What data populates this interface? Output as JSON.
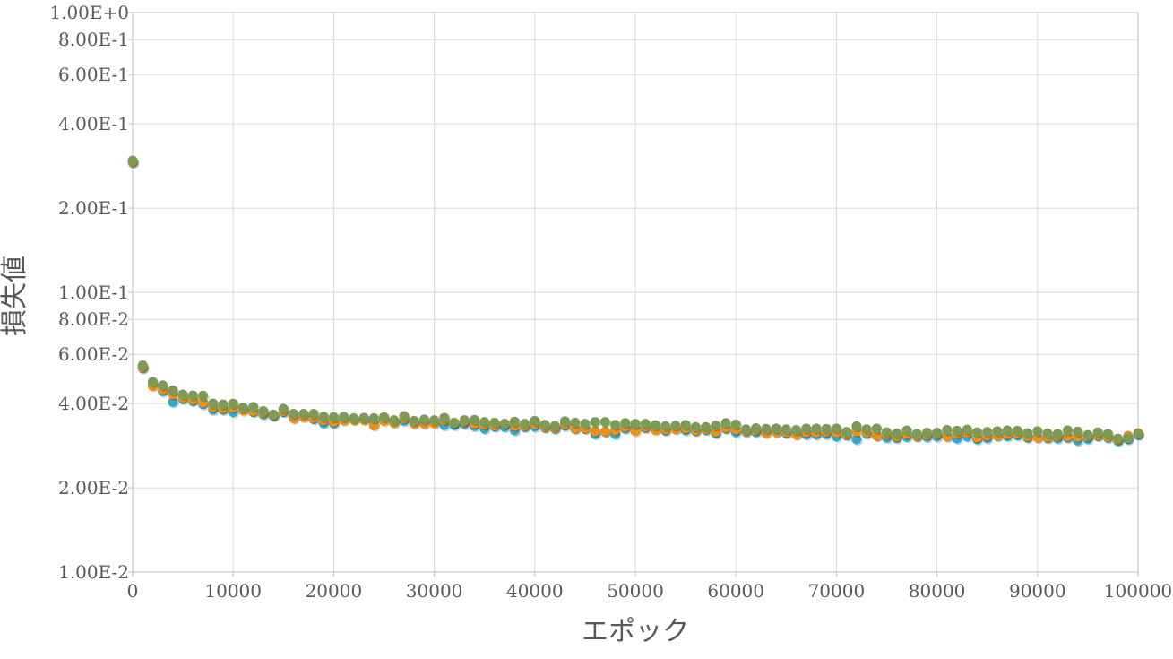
{
  "chart_data": {
    "type": "scatter",
    "title": "",
    "xlabel": "エポック",
    "ylabel": "損失値",
    "xlim": [
      0,
      100000
    ],
    "ylim": [
      0.01,
      1.0
    ],
    "y_scale": "log",
    "grid": true,
    "legend": "none",
    "x_ticks": [
      "0",
      "10000",
      "20000",
      "30000",
      "40000",
      "50000",
      "60000",
      "70000",
      "80000",
      "90000",
      "100000"
    ],
    "y_ticks": [
      {
        "value": 1.0,
        "label": "1.00E+0"
      },
      {
        "value": 0.8,
        "label": "8.00E-1"
      },
      {
        "value": 0.6,
        "label": "6.00E-1"
      },
      {
        "value": 0.4,
        "label": "4.00E-1"
      },
      {
        "value": 0.2,
        "label": "2.00E-1"
      },
      {
        "value": 0.1,
        "label": "1.00E-1"
      },
      {
        "value": 0.08,
        "label": "8.00E-2"
      },
      {
        "value": 0.06,
        "label": "6.00E-2"
      },
      {
        "value": 0.04,
        "label": "4.00E-2"
      },
      {
        "value": 0.02,
        "label": "2.00E-2"
      },
      {
        "value": 0.01,
        "label": "1.00E-2"
      }
    ],
    "x": [
      0,
      1000,
      2000,
      3000,
      4000,
      5000,
      6000,
      7000,
      8000,
      9000,
      10000,
      11000,
      12000,
      13000,
      14000,
      15000,
      16000,
      17000,
      18000,
      19000,
      20000,
      21000,
      22000,
      23000,
      24000,
      25000,
      26000,
      27000,
      28000,
      29000,
      30000,
      31000,
      32000,
      33000,
      34000,
      35000,
      36000,
      37000,
      38000,
      39000,
      40000,
      41000,
      42000,
      43000,
      44000,
      45000,
      46000,
      47000,
      48000,
      49000,
      50000,
      51000,
      52000,
      53000,
      54000,
      55000,
      56000,
      57000,
      58000,
      59000,
      60000,
      61000,
      62000,
      63000,
      64000,
      65000,
      66000,
      67000,
      68000,
      69000,
      70000,
      71000,
      72000,
      73000,
      74000,
      75000,
      76000,
      77000,
      78000,
      79000,
      80000,
      81000,
      82000,
      83000,
      84000,
      85000,
      86000,
      87000,
      88000,
      89000,
      90000,
      91000,
      92000,
      93000,
      94000,
      95000,
      96000,
      97000,
      98000,
      99000,
      100000
    ],
    "series": [
      {
        "color": "#3aa7c4",
        "values": [
          0.291,
          0.0535,
          0.0468,
          0.0442,
          0.0405,
          0.0415,
          0.0408,
          0.0398,
          0.038,
          0.038,
          0.0373,
          0.0383,
          0.0373,
          0.0366,
          0.0361,
          0.0373,
          0.0357,
          0.0362,
          0.0352,
          0.034,
          0.034,
          0.0351,
          0.0351,
          0.0353,
          0.0342,
          0.0352,
          0.0345,
          0.0347,
          0.0343,
          0.0342,
          0.0344,
          0.0335,
          0.0335,
          0.0338,
          0.0332,
          0.0325,
          0.0331,
          0.033,
          0.0321,
          0.033,
          0.0331,
          0.0328,
          0.0325,
          0.0333,
          0.0325,
          0.0325,
          0.0311,
          0.0317,
          0.0311,
          0.0325,
          0.0326,
          0.0327,
          0.0326,
          0.032,
          0.0327,
          0.0321,
          0.0319,
          0.0322,
          0.0313,
          0.0325,
          0.0316,
          0.0317,
          0.0316,
          0.0318,
          0.0317,
          0.0313,
          0.0312,
          0.031,
          0.031,
          0.0311,
          0.0305,
          0.0308,
          0.0298,
          0.0312,
          0.0307,
          0.0302,
          0.0301,
          0.0304,
          0.0305,
          0.0304,
          0.0305,
          0.0306,
          0.03,
          0.0305,
          0.0298,
          0.0301,
          0.0307,
          0.0306,
          0.0308,
          0.0302,
          0.0303,
          0.0301,
          0.03,
          0.0302,
          0.0295,
          0.0299,
          0.0306,
          0.0302,
          0.0294,
          0.0298,
          0.0309
        ]
      },
      {
        "color": "#e8921c",
        "values": [
          0.293,
          0.054,
          0.0462,
          0.045,
          0.0432,
          0.042,
          0.0414,
          0.0404,
          0.039,
          0.0385,
          0.0389,
          0.0378,
          0.0377,
          0.0371,
          0.0364,
          0.0376,
          0.0355,
          0.0358,
          0.0356,
          0.0349,
          0.0345,
          0.0349,
          0.035,
          0.035,
          0.0334,
          0.0347,
          0.0341,
          0.0355,
          0.0339,
          0.0339,
          0.034,
          0.035,
          0.0342,
          0.0346,
          0.034,
          0.0337,
          0.0334,
          0.0339,
          0.0333,
          0.0333,
          0.0339,
          0.0331,
          0.0328,
          0.0338,
          0.0327,
          0.0327,
          0.0319,
          0.0318,
          0.0322,
          0.0331,
          0.0319,
          0.0331,
          0.0322,
          0.0324,
          0.0324,
          0.0327,
          0.0322,
          0.0324,
          0.0318,
          0.0329,
          0.0324,
          0.0319,
          0.0322,
          0.0314,
          0.0317,
          0.0317,
          0.031,
          0.0317,
          0.0316,
          0.0318,
          0.0316,
          0.0311,
          0.0319,
          0.0316,
          0.0308,
          0.0311,
          0.0306,
          0.0312,
          0.0307,
          0.031,
          0.0312,
          0.0306,
          0.0313,
          0.0316,
          0.0303,
          0.0308,
          0.0308,
          0.0312,
          0.0313,
          0.0306,
          0.0303,
          0.0304,
          0.0307,
          0.0306,
          0.0305,
          0.0306,
          0.0309,
          0.0305,
          0.0298,
          0.0307,
          0.0314
        ]
      },
      {
        "color": "#7d9b55",
        "values": [
          0.296,
          0.0548,
          0.0479,
          0.0465,
          0.0446,
          0.0431,
          0.0428,
          0.0427,
          0.04,
          0.0397,
          0.04,
          0.0387,
          0.0389,
          0.0376,
          0.0366,
          0.0383,
          0.0368,
          0.0368,
          0.0368,
          0.0359,
          0.0358,
          0.0359,
          0.0355,
          0.0356,
          0.0355,
          0.0358,
          0.0349,
          0.0361,
          0.0347,
          0.0351,
          0.0349,
          0.0356,
          0.0341,
          0.0349,
          0.035,
          0.0344,
          0.0342,
          0.0339,
          0.0345,
          0.0339,
          0.0347,
          0.0336,
          0.0333,
          0.0346,
          0.0342,
          0.0339,
          0.0344,
          0.0344,
          0.0336,
          0.0341,
          0.0339,
          0.0339,
          0.0335,
          0.0332,
          0.0334,
          0.0336,
          0.033,
          0.033,
          0.0334,
          0.0341,
          0.0337,
          0.0324,
          0.0327,
          0.0325,
          0.0326,
          0.0324,
          0.0322,
          0.0326,
          0.0326,
          0.0325,
          0.0326,
          0.0317,
          0.0332,
          0.0324,
          0.0326,
          0.0316,
          0.0313,
          0.0321,
          0.0312,
          0.0315,
          0.0315,
          0.0322,
          0.032,
          0.0323,
          0.0316,
          0.0317,
          0.0319,
          0.0321,
          0.032,
          0.0314,
          0.0319,
          0.0313,
          0.0312,
          0.0321,
          0.0318,
          0.0309,
          0.0316,
          0.0312,
          0.03,
          0.0301,
          0.0312
        ]
      }
    ]
  }
}
